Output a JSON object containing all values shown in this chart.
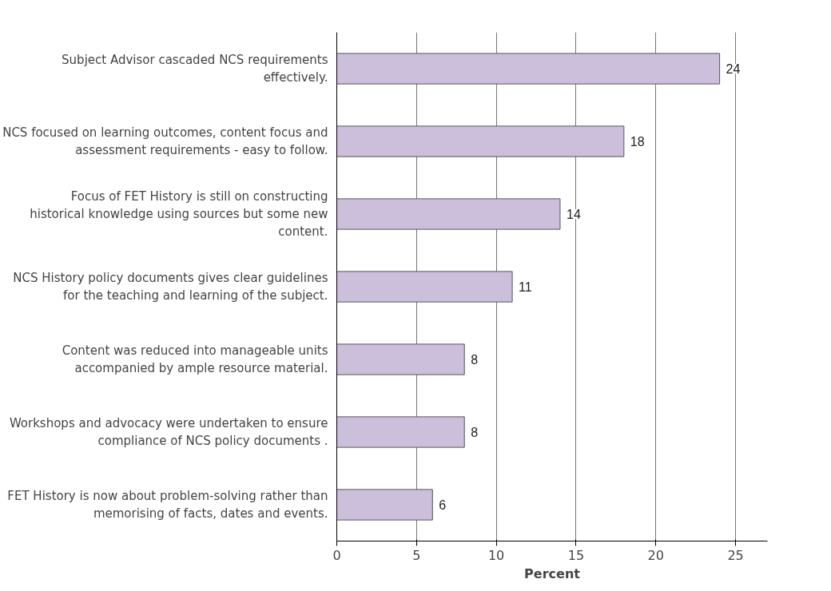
{
  "chart_data": {
    "type": "bar",
    "orientation": "horizontal",
    "xlabel": "Percent",
    "categories": [
      "Subject Advisor cascaded NCS requirements effectively.",
      "NCS focused on learning outcomes, content focus and assessment requirements - easy to follow.",
      "Focus of FET History is still on constructing historical knowledge using sources but some new content.",
      "NCS History policy documents gives clear guidelines for the teaching and learning of the subject.",
      "Content was reduced into manageable units accompanied by ample resource material.",
      "Workshops and advocacy were undertaken to ensure compliance of NCS policy documents .",
      "FET History is now about problem-solving rather than memorising of facts, dates and events."
    ],
    "values": [
      24,
      18,
      14,
      11,
      8,
      8,
      6
    ],
    "color": "#cbbfdc",
    "xlim": [
      0,
      27
    ],
    "xticks": [
      0,
      5,
      10,
      15,
      20,
      25
    ],
    "grid": "x",
    "data_labels": true
  }
}
